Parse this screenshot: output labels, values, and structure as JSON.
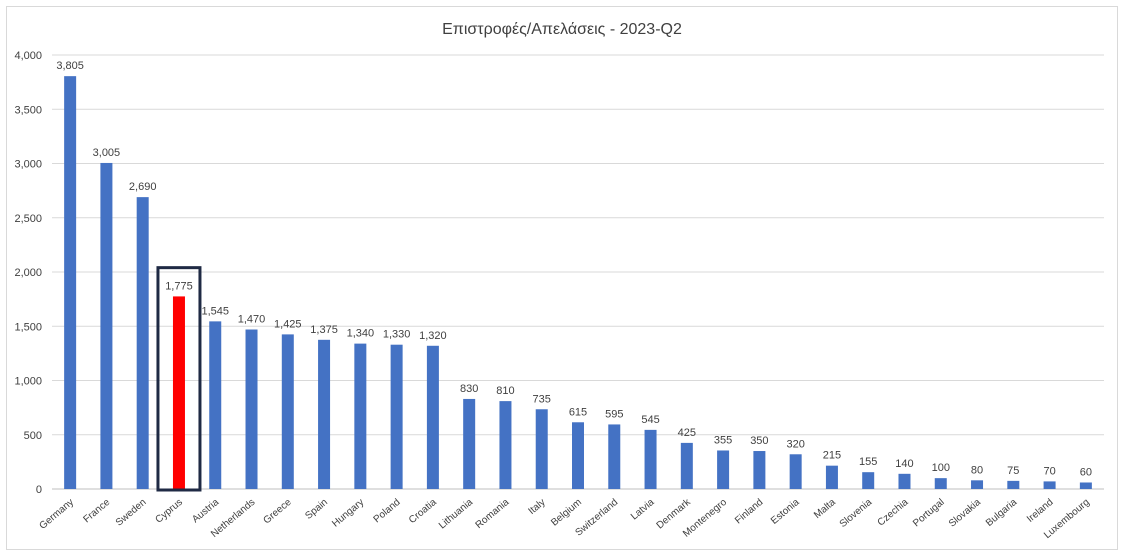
{
  "chart_data": {
    "type": "bar",
    "title": "Επιστροφές/Απελάσεις - 2023-Q2",
    "xlabel": "",
    "ylabel": "",
    "ylim": [
      0,
      4000
    ],
    "yticks": [
      "0",
      "500",
      "1,000",
      "1,500",
      "2,000",
      "2,500",
      "3,000",
      "3,500",
      "4,000"
    ],
    "grid": true,
    "legend": "none",
    "highlight": "Cyprus",
    "colors": {
      "bar": "#4472C4",
      "highlight": "#FF0000",
      "highlight_box": "#1F2A44",
      "grid": "#d9d9d9"
    },
    "categories": [
      "Germany",
      "France",
      "Sweden",
      "Cyprus",
      "Austria",
      "Netherlands",
      "Greece",
      "Spain",
      "Hungary",
      "Poland",
      "Croatia",
      "Lithuania",
      "Romania",
      "Italy",
      "Belgium",
      "Switzerland",
      "Latvia",
      "Denmark",
      "Montenegro",
      "Finland",
      "Estonia",
      "Malta",
      "Slovenia",
      "Czechia",
      "Portugal",
      "Slovakia",
      "Bulgaria",
      "Ireland",
      "Luxembourg"
    ],
    "values": [
      3805,
      3005,
      2690,
      1775,
      1545,
      1470,
      1425,
      1375,
      1340,
      1330,
      1320,
      830,
      810,
      735,
      615,
      595,
      545,
      425,
      355,
      350,
      320,
      215,
      155,
      140,
      100,
      80,
      75,
      70,
      60
    ],
    "value_labels": [
      "3,805",
      "3,005",
      "2,690",
      "1,775",
      "1,545",
      "1,470",
      "1,425",
      "1,375",
      "1,340",
      "1,330",
      "1,320",
      "830",
      "810",
      "735",
      "615",
      "595",
      "545",
      "425",
      "355",
      "350",
      "320",
      "215",
      "155",
      "140",
      "100",
      "80",
      "75",
      "70",
      "60"
    ]
  }
}
